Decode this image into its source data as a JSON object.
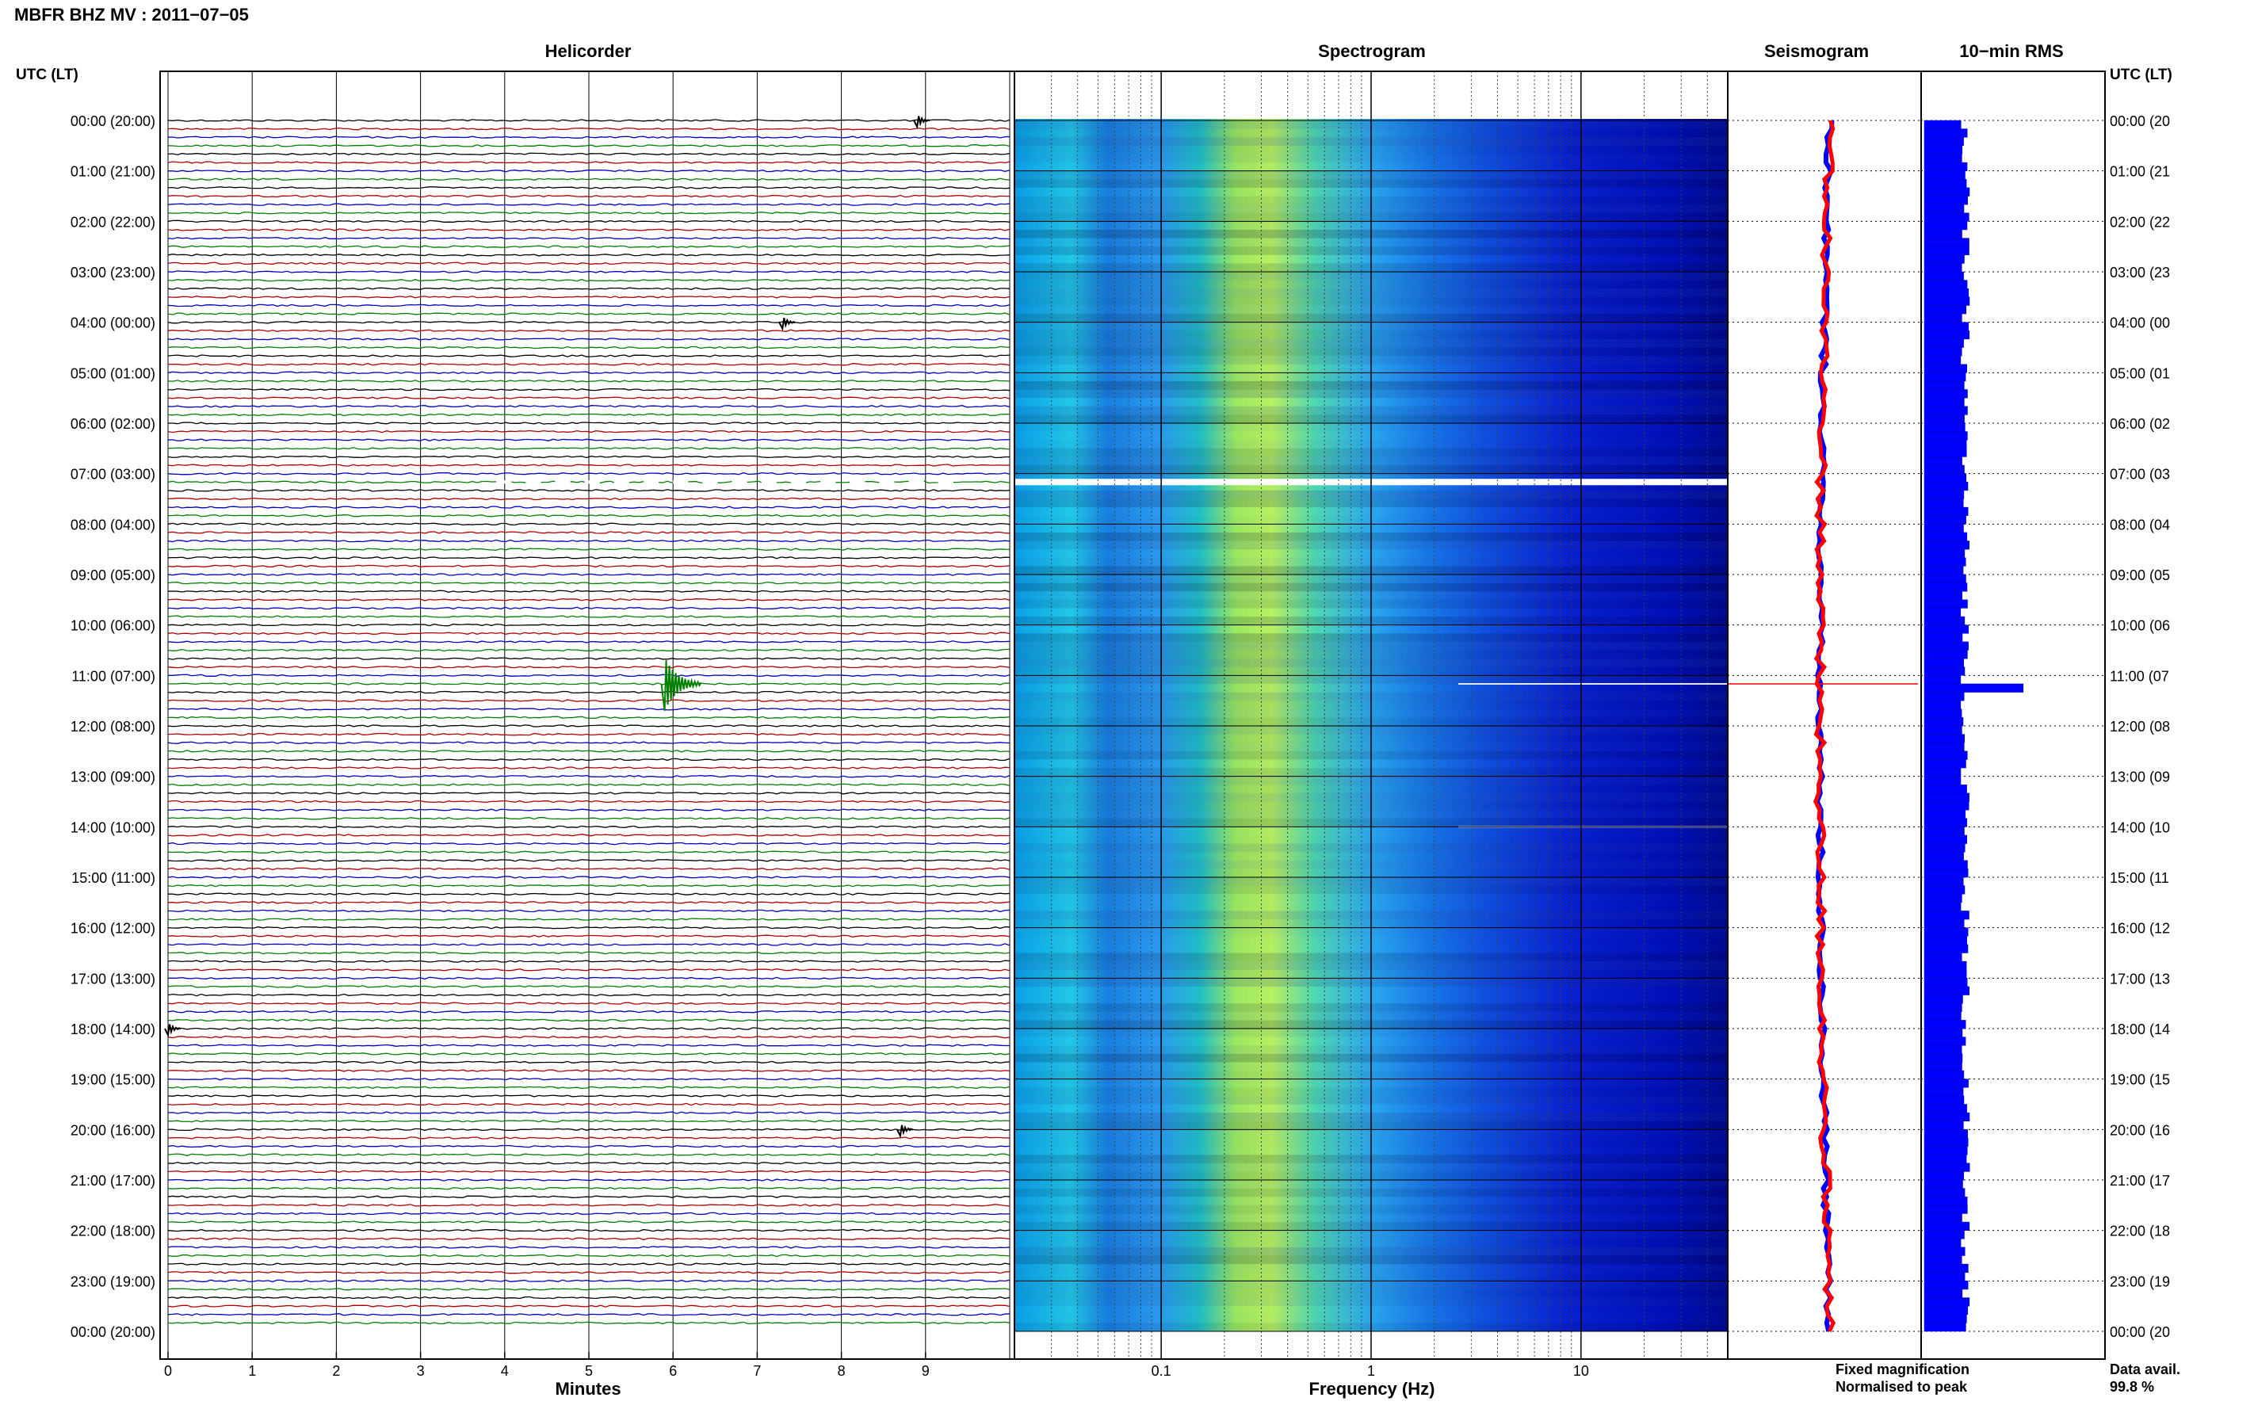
{
  "title": "MBFR BHZ MV : 2011−07−05",
  "panels": {
    "helicorder": "Helicorder",
    "spectrogram": "Spectrogram",
    "seismogram": "Seismogram",
    "rms": "10−min RMS"
  },
  "axis_labels": {
    "time_left": "UTC (LT)",
    "time_right": "UTC (LT)",
    "helicorder_x": "Minutes",
    "spectrogram_x": "Frequency (Hz)"
  },
  "legend": {
    "fixed": "Fixed magnification",
    "normalised": "Normalised to peak",
    "fixed_color": "#0000ff",
    "normalised_color": "#ff0000"
  },
  "data_avail": {
    "label": "Data avail.",
    "value": "99.8 %"
  },
  "colors": {
    "trace_cycle": [
      "#000000",
      "#b00000",
      "#0000c0",
      "#008000"
    ],
    "spectrogram_low": "#00007f",
    "spectrogram_high": "#ffff40",
    "rms_bar": "#0000ff"
  },
  "chart_data": [
    {
      "type": "line",
      "name": "helicorder",
      "title": "Helicorder",
      "xlabel": "Minutes",
      "x_ticks": [
        "0",
        "1",
        "2",
        "3",
        "4",
        "5",
        "6",
        "7",
        "8",
        "9"
      ],
      "xlim": [
        0,
        10
      ],
      "y_tick_labels": [
        "00:00 (20:00)",
        "01:00 (21:00)",
        "02:00 (22:00)",
        "03:00 (23:00)",
        "04:00 (00:00)",
        "05:00 (01:00)",
        "06:00 (02:00)",
        "07:00 (03:00)",
        "08:00 (04:00)",
        "09:00 (05:00)",
        "10:00 (06:00)",
        "11:00 (07:00)",
        "12:00 (08:00)",
        "13:00 (09:00)",
        "14:00 (10:00)",
        "15:00 (11:00)",
        "16:00 (12:00)",
        "17:00 (13:00)",
        "18:00 (14:00)",
        "19:00 (15:00)",
        "20:00 (16:00)",
        "21:00 (17:00)",
        "22:00 (18:00)",
        "23:00 (19:00)",
        "00:00 (20:00)"
      ],
      "trace_minutes": 10,
      "hours": 24,
      "events": [
        {
          "time_utc": "11:00",
          "minute": 5.9
        },
        {
          "time_utc": "04:00",
          "minute": 7.3
        },
        {
          "time_utc": "20:00",
          "minute": 8.7
        },
        {
          "time_utc": "00:00",
          "minute": 8.9
        },
        {
          "time_utc": "18:00",
          "minute": 0.0
        }
      ],
      "gaps": [
        {
          "time_utc": "07:10",
          "minute_start": 3.9,
          "minute_end": 9.4
        }
      ]
    },
    {
      "type": "heatmap",
      "name": "spectrogram",
      "title": "Spectrogram",
      "xlabel": "Frequency (Hz)",
      "x_scale": "log",
      "x_ticks": [
        "0.1",
        "1",
        "10"
      ],
      "xlim": [
        0.02,
        50
      ],
      "peak_band_hz": [
        0.2,
        0.5
      ],
      "gap_time_utc": "07:10",
      "transient_times_utc": [
        "11:10",
        "14:00"
      ]
    },
    {
      "type": "line",
      "name": "seismogram",
      "title": "Seismogram",
      "series": [
        {
          "name": "Fixed magnification"
        },
        {
          "name": "Normalised to peak"
        }
      ],
      "spike_time_utc": "11:10"
    },
    {
      "type": "bar",
      "name": "rms",
      "title": "10−min RMS",
      "orientation": "horizontal",
      "bins_per_hour": 6,
      "typical_rms": 1.0,
      "peak": {
        "time_utc": "11:10",
        "relative_rms": 2.4
      }
    }
  ]
}
